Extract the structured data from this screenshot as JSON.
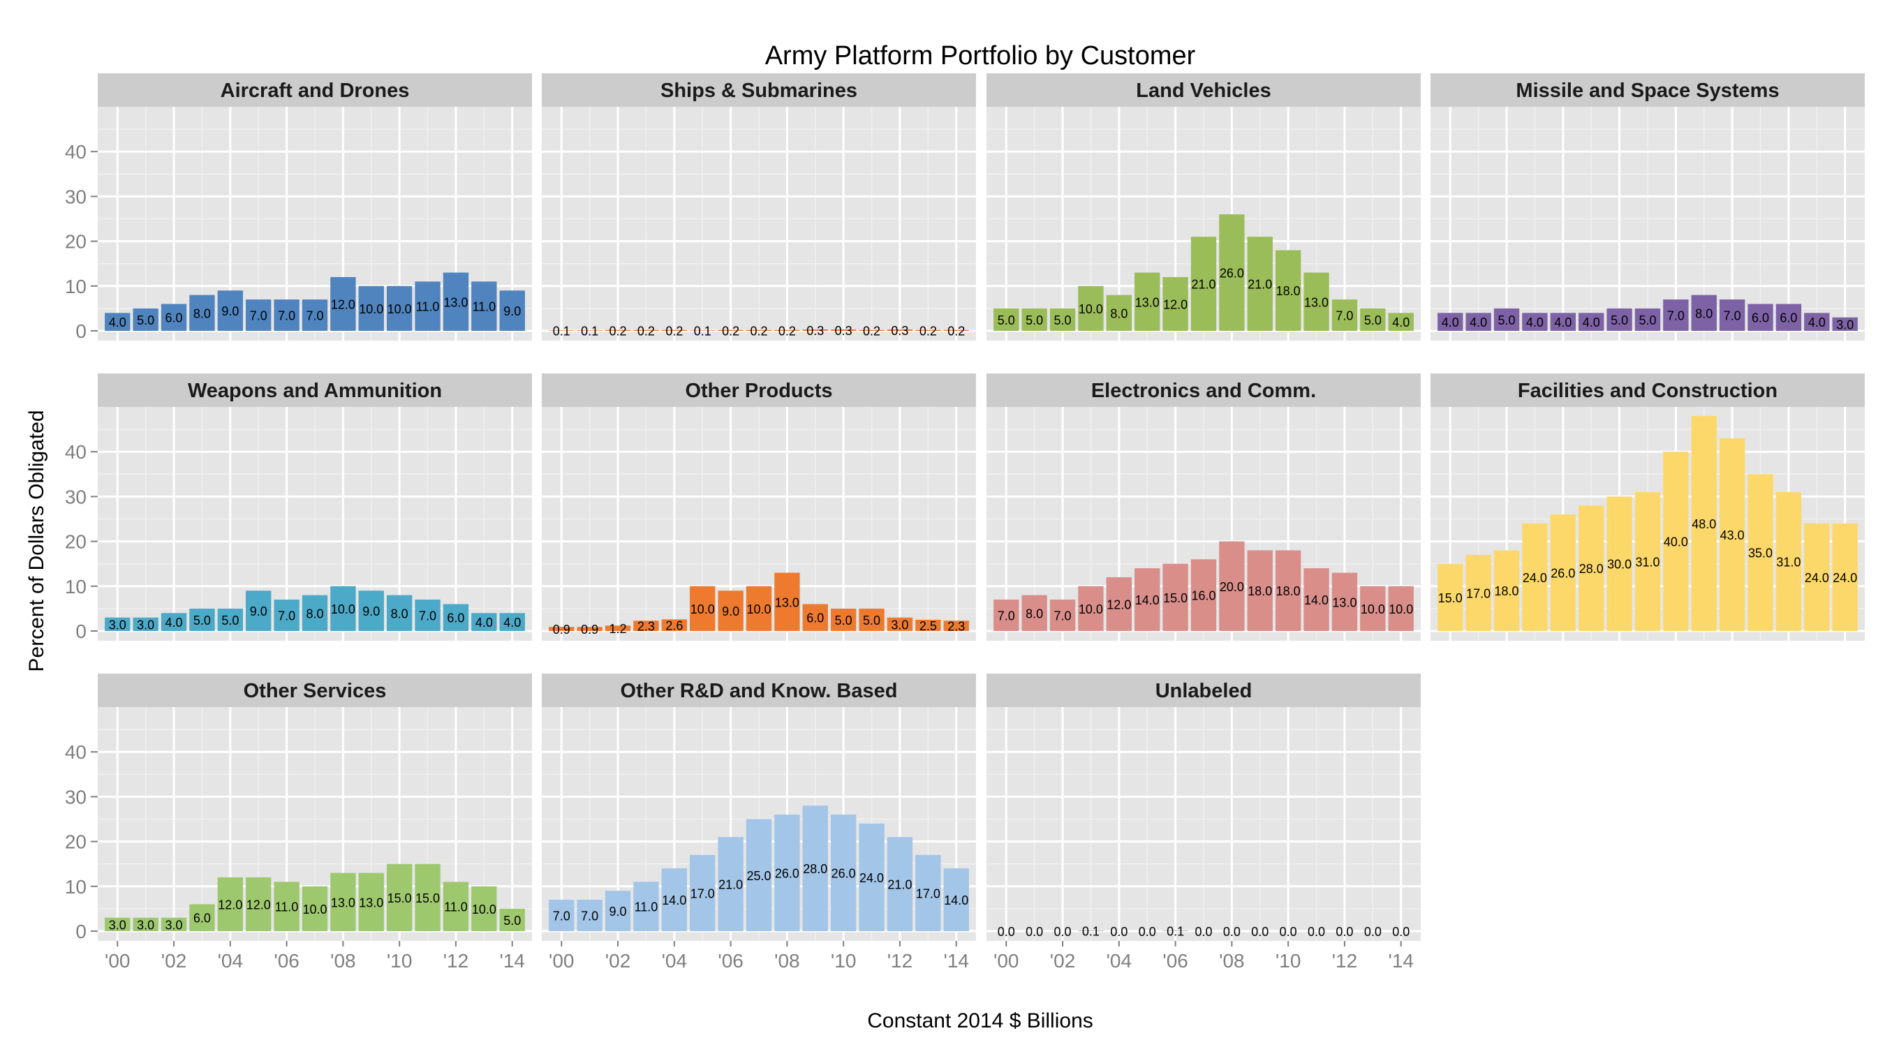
{
  "chart_data": {
    "type": "bar",
    "title": "Army Platform Portfolio by Customer",
    "xlabel": "Constant 2014 $ Billions",
    "ylabel": "Percent of Dollars Obligated",
    "ylim": [
      0,
      50
    ],
    "y_ticks": [
      0,
      10,
      20,
      30,
      40
    ],
    "x_ticks": [
      "'00",
      "'02",
      "'04",
      "'06",
      "'08",
      "'10",
      "'12",
      "'14"
    ],
    "x_tick_years": [
      2000,
      2002,
      2004,
      2006,
      2008,
      2010,
      2012,
      2014
    ],
    "facet_layout": "4 columns x 3 rows",
    "grid": true,
    "panels": [
      {
        "name": "Aircraft and Drones",
        "color": "#4f84bf",
        "years": [
          2000,
          2001,
          2002,
          2003,
          2004,
          2005,
          2006,
          2007,
          2008,
          2009,
          2010,
          2011,
          2012,
          2013,
          2014
        ],
        "values": [
          4.0,
          5.0,
          6.0,
          8.0,
          9.0,
          7.0,
          7.0,
          7.0,
          12.0,
          10.0,
          10.0,
          11.0,
          13.0,
          11.0,
          9.0
        ],
        "labels": [
          "4.0",
          "5.0",
          "6.0",
          "8.0",
          "9.0",
          "7.0",
          "7.0",
          "7.0",
          "12.0",
          "10.0",
          "10.0",
          "11.0",
          "13.0",
          "11.0",
          "9.0"
        ]
      },
      {
        "name": "Ships & Submarines",
        "color": "#e8753a",
        "years": [
          2000,
          2001,
          2002,
          2003,
          2004,
          2005,
          2006,
          2007,
          2008,
          2009,
          2010,
          2011,
          2012,
          2013,
          2014
        ],
        "values": [
          0.1,
          0.1,
          0.2,
          0.2,
          0.2,
          0.1,
          0.2,
          0.2,
          0.2,
          0.3,
          0.3,
          0.2,
          0.3,
          0.2,
          0.2
        ],
        "labels": [
          "0.1",
          "0.1",
          "0.2",
          "0.2",
          "0.2",
          "0.1",
          "0.2",
          "0.2",
          "0.2",
          "0.3",
          "0.3",
          "0.2",
          "0.3",
          "0.2",
          "0.2"
        ]
      },
      {
        "name": "Land Vehicles",
        "color": "#9bbd59",
        "years": [
          2000,
          2001,
          2002,
          2003,
          2004,
          2005,
          2006,
          2007,
          2008,
          2009,
          2010,
          2011,
          2012,
          2013,
          2014
        ],
        "values": [
          5.0,
          5.0,
          5.0,
          10.0,
          8.0,
          13.0,
          12.0,
          21.0,
          26.0,
          21.0,
          18.0,
          13.0,
          7.0,
          5.0,
          4.0
        ],
        "labels": [
          "5.0",
          "5.0",
          "5.0",
          "10.0",
          "8.0",
          "13.0",
          "12.0",
          "21.0",
          "26.0",
          "21.0",
          "18.0",
          "13.0",
          "7.0",
          "5.0",
          "4.0"
        ]
      },
      {
        "name": "Missile and Space Systems",
        "color": "#7d62a6",
        "years": [
          2000,
          2001,
          2002,
          2003,
          2004,
          2005,
          2006,
          2007,
          2008,
          2009,
          2010,
          2011,
          2012,
          2013,
          2014
        ],
        "values": [
          4.0,
          4.0,
          5.0,
          4.0,
          4.0,
          4.0,
          5.0,
          5.0,
          7.0,
          8.0,
          7.0,
          6.0,
          6.0,
          4.0,
          3.0
        ],
        "labels": [
          "4.0",
          "4.0",
          "5.0",
          "4.0",
          "4.0",
          "4.0",
          "5.0",
          "5.0",
          "7.0",
          "8.0",
          "7.0",
          "6.0",
          "6.0",
          "4.0",
          "3.0"
        ]
      },
      {
        "name": "Weapons and Ammunition",
        "color": "#4ca9c8",
        "years": [
          2000,
          2001,
          2002,
          2003,
          2004,
          2005,
          2006,
          2007,
          2008,
          2009,
          2010,
          2011,
          2012,
          2013,
          2014
        ],
        "values": [
          3.0,
          3.0,
          4.0,
          5.0,
          5.0,
          9.0,
          7.0,
          8.0,
          10.0,
          9.0,
          8.0,
          7.0,
          6.0,
          4.0,
          4.0
        ],
        "labels": [
          "3.0",
          "3.0",
          "4.0",
          "5.0",
          "5.0",
          "9.0",
          "7.0",
          "8.0",
          "10.0",
          "9.0",
          "8.0",
          "7.0",
          "6.0",
          "4.0",
          "4.0"
        ]
      },
      {
        "name": "Other Products",
        "color": "#ee7a30",
        "years": [
          2000,
          2001,
          2002,
          2003,
          2004,
          2005,
          2006,
          2007,
          2008,
          2009,
          2010,
          2011,
          2012,
          2013,
          2014
        ],
        "values": [
          0.9,
          0.9,
          1.2,
          2.3,
          2.6,
          10.0,
          9.0,
          10.0,
          13.0,
          6.0,
          5.0,
          5.0,
          3.0,
          2.5,
          2.3
        ],
        "labels": [
          "0.9",
          "0.9",
          "1.2",
          "2.3",
          "2.6",
          "10.0",
          "9.0",
          "10.0",
          "13.0",
          "6.0",
          "5.0",
          "5.0",
          "3.0",
          "2.5",
          "2.3"
        ]
      },
      {
        "name": "Electronics and Comm.",
        "color": "#d98e8a",
        "years": [
          2000,
          2001,
          2002,
          2003,
          2004,
          2005,
          2006,
          2007,
          2008,
          2009,
          2010,
          2011,
          2012,
          2013,
          2014
        ],
        "values": [
          7.0,
          8.0,
          7.0,
          10.0,
          12.0,
          14.0,
          15.0,
          16.0,
          20.0,
          18.0,
          18.0,
          14.0,
          13.0,
          10.0,
          10.0
        ],
        "labels": [
          "7.0",
          "8.0",
          "7.0",
          "10.0",
          "12.0",
          "14.0",
          "15.0",
          "16.0",
          "20.0",
          "18.0",
          "18.0",
          "14.0",
          "13.0",
          "10.0",
          "10.0"
        ]
      },
      {
        "name": "Facilities and Construction",
        "color": "#fcd86b",
        "years": [
          2000,
          2001,
          2002,
          2003,
          2004,
          2005,
          2006,
          2007,
          2008,
          2009,
          2010,
          2011,
          2012,
          2013,
          2014
        ],
        "values": [
          15.0,
          17.0,
          18.0,
          24.0,
          26.0,
          28.0,
          30.0,
          31.0,
          40.0,
          48.0,
          43.0,
          35.0,
          31.0,
          24.0,
          24.0
        ],
        "labels": [
          "15.0",
          "17.0",
          "18.0",
          "24.0",
          "26.0",
          "28.0",
          "30.0",
          "31.0",
          "40.0",
          "48.0",
          "43.0",
          "35.0",
          "31.0",
          "24.0",
          "24.0"
        ]
      },
      {
        "name": "Other Services",
        "color": "#9ec86e",
        "years": [
          2000,
          2001,
          2002,
          2003,
          2004,
          2005,
          2006,
          2007,
          2008,
          2009,
          2010,
          2011,
          2012,
          2013,
          2014
        ],
        "values": [
          3.0,
          3.0,
          3.0,
          6.0,
          12.0,
          12.0,
          11.0,
          10.0,
          13.0,
          13.0,
          15.0,
          15.0,
          11.0,
          10.0,
          5.0
        ],
        "labels": [
          "3.0",
          "3.0",
          "3.0",
          "6.0",
          "12.0",
          "12.0",
          "11.0",
          "10.0",
          "13.0",
          "13.0",
          "15.0",
          "15.0",
          "11.0",
          "10.0",
          "5.0"
        ]
      },
      {
        "name": "Other R&D and Know. Based",
        "color": "#a2c5e8",
        "years": [
          2000,
          2001,
          2002,
          2003,
          2004,
          2005,
          2006,
          2007,
          2008,
          2009,
          2010,
          2011,
          2012,
          2013,
          2014
        ],
        "values": [
          7.0,
          7.0,
          9.0,
          11.0,
          14.0,
          17.0,
          21.0,
          25.0,
          26.0,
          28.0,
          26.0,
          24.0,
          21.0,
          17.0,
          14.0
        ],
        "labels": [
          "7.0",
          "7.0",
          "9.0",
          "11.0",
          "14.0",
          "17.0",
          "21.0",
          "25.0",
          "26.0",
          "28.0",
          "26.0",
          "24.0",
          "21.0",
          "17.0",
          "14.0"
        ]
      },
      {
        "name": "Unlabeled",
        "color": "#9a9a9a",
        "years": [
          2000,
          2001,
          2002,
          2003,
          2004,
          2005,
          2006,
          2007,
          2008,
          2009,
          2010,
          2011,
          2012,
          2013,
          2014
        ],
        "values": [
          0.0,
          0.0,
          0.0,
          0.1,
          0.0,
          0.0,
          0.1,
          0.0,
          0.0,
          0.0,
          0.0,
          0.0,
          0.0,
          0.0,
          0.0
        ],
        "labels": [
          "0.0",
          "0.0",
          "0.0",
          "0.1",
          "0.0",
          "0.0",
          "0.1",
          "0.0",
          "0.0",
          "0.0",
          "0.0",
          "0.0",
          "0.0",
          "0.0",
          "0.0"
        ]
      }
    ]
  }
}
